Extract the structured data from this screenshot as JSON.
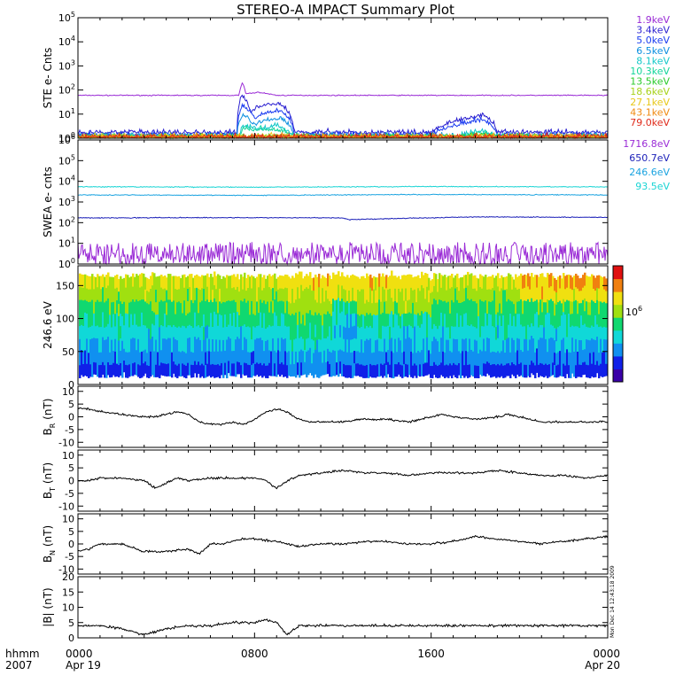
{
  "title": "STEREO-A IMPACT Summary Plot",
  "time_axis": {
    "row1_label": "hhmm",
    "row2_label": "2007",
    "ticks": [
      {
        "hour": 0,
        "label": "0000",
        "date": "Apr 19"
      },
      {
        "hour": 8,
        "label": "0800",
        "date": ""
      },
      {
        "hour": 16,
        "label": "1600",
        "date": ""
      },
      {
        "hour": 24,
        "label": "0000",
        "date": "Apr 20"
      }
    ]
  },
  "side_stamp": "Mon Dec 14 12:43:18 2009",
  "chart_data": [
    {
      "type": "line",
      "ylabel": "STE e- Cnts",
      "yscale": "log",
      "ylim": [
        1,
        100000
      ],
      "yticks": [
        {
          "base": "10",
          "exp": "0"
        },
        {
          "base": "10",
          "exp": "1"
        },
        {
          "base": "10",
          "exp": "2"
        },
        {
          "base": "10",
          "exp": "3"
        },
        {
          "base": "10",
          "exp": "4"
        },
        {
          "base": "10",
          "exp": "5"
        }
      ],
      "xlim_hours": [
        0,
        24
      ],
      "legend_placement": "right",
      "series": [
        {
          "name": "1.9keV",
          "color": "#9a2bd6",
          "x_hours": [
            0,
            4,
            7.3,
            7.45,
            7.6,
            8.2,
            9,
            12,
            16,
            20,
            24
          ],
          "values": [
            60,
            60,
            60,
            200,
            70,
            80,
            60,
            60,
            60,
            60,
            60
          ]
        },
        {
          "name": "3.4keV",
          "color": "#2a1fd0",
          "x_hours": [
            0,
            4,
            7.2,
            7.45,
            7.8,
            8.3,
            9.1,
            9.8,
            12,
            16,
            18.4,
            19,
            20,
            24
          ],
          "values": [
            1.5,
            1.5,
            1.5,
            50,
            10,
            20,
            25,
            1.5,
            1.5,
            1.5,
            8,
            1.5,
            1.5,
            1.5
          ]
        },
        {
          "name": "5.0keV",
          "color": "#1b3cf0",
          "x_hours": [
            0,
            7.2,
            7.45,
            8,
            8.5,
            9.2,
            9.8,
            16,
            18.4,
            19,
            24
          ],
          "values": [
            1.2,
            1.2,
            20,
            6,
            10,
            12,
            1.2,
            1.2,
            5,
            1.2,
            1.2
          ]
        },
        {
          "name": "6.5keV",
          "color": "#0b8fe0",
          "x_hours": [
            0,
            7.2,
            7.45,
            8,
            8.5,
            9.2,
            9.8,
            16,
            24
          ],
          "values": [
            1.1,
            1.1,
            8,
            3,
            5,
            6,
            1.1,
            1.1,
            1.1
          ]
        },
        {
          "name": "8.1keV",
          "color": "#12c8c8",
          "x_hours": [
            0,
            7.3,
            7.5,
            8.3,
            9,
            9.8,
            17.2,
            18.2,
            19.1,
            24
          ],
          "values": [
            1,
            1,
            3,
            2,
            3,
            1,
            1,
            1.8,
            1,
            1
          ]
        },
        {
          "name": "10.3keV",
          "color": "#12d59a",
          "x_hours": [
            0,
            7.3,
            7.5,
            9,
            9.8,
            17.4,
            18.2,
            19,
            24
          ],
          "values": [
            1,
            1,
            2,
            2,
            1,
            1,
            1.5,
            1,
            1
          ]
        },
        {
          "name": "13.5keV",
          "color": "#2acb2a",
          "x_hours": [
            0,
            17.6,
            18.2,
            18.8,
            24
          ],
          "values": [
            1,
            1,
            1.3,
            1,
            1
          ]
        },
        {
          "name": "18.6keV",
          "color": "#a8d21a",
          "x_hours": [
            0,
            24
          ],
          "values": [
            1,
            1
          ]
        },
        {
          "name": "27.1keV",
          "color": "#e8c81a",
          "x_hours": [
            0,
            24
          ],
          "values": [
            1,
            1
          ]
        },
        {
          "name": "43.1keV",
          "color": "#f08a10",
          "x_hours": [
            0,
            24
          ],
          "values": [
            1,
            1
          ]
        },
        {
          "name": "79.0keV",
          "color": "#e02a1a",
          "x_hours": [
            0,
            24
          ],
          "values": [
            1,
            1
          ]
        }
      ]
    },
    {
      "type": "line",
      "ylabel": "SWEA e- cnts",
      "yscale": "log",
      "ylim": [
        1,
        1000000
      ],
      "yticks": [
        {
          "base": "10",
          "exp": "0"
        },
        {
          "base": "10",
          "exp": "1"
        },
        {
          "base": "10",
          "exp": "2"
        },
        {
          "base": "10",
          "exp": "3"
        },
        {
          "base": "10",
          "exp": "4"
        },
        {
          "base": "10",
          "exp": "5"
        },
        {
          "base": "10",
          "exp": "6"
        }
      ],
      "xlim_hours": [
        0,
        24
      ],
      "legend_placement": "right",
      "series": [
        {
          "name": "1716.8eV",
          "color": "#9a2bd6",
          "x_hours": [
            0,
            24
          ],
          "values": [
            2.5,
            2.5
          ]
        },
        {
          "name": "650.7eV",
          "color": "#1a1fb8",
          "x_hours": [
            0,
            6,
            12,
            12.3,
            18,
            24
          ],
          "values": [
            170,
            175,
            170,
            140,
            190,
            180
          ]
        },
        {
          "name": "246.6eV",
          "color": "#1aa3e0",
          "x_hours": [
            0,
            8,
            16,
            24
          ],
          "values": [
            2200,
            2100,
            2300,
            2200
          ]
        },
        {
          "name": "93.5eV",
          "color": "#19d4d4",
          "x_hours": [
            0,
            8,
            16,
            24
          ],
          "values": [
            5500,
            5200,
            5600,
            5400
          ]
        }
      ]
    },
    {
      "type": "heatmap",
      "ylabel": "246.6 eV",
      "ylim": [
        0,
        180
      ],
      "yticks": [
        "0",
        "50",
        "100",
        "150"
      ],
      "xlim_hours": [
        0,
        24
      ],
      "colorbar_label": "10",
      "colorbar_label_exp": "6",
      "colorbar_colors": [
        "#3a00a8",
        "#1020e8",
        "#1090f0",
        "#10d8d8",
        "#10d870",
        "#a0e010",
        "#f0e010",
        "#f08010",
        "#e01010"
      ]
    },
    {
      "type": "line",
      "ylabel": "B",
      "ylabel_sub": "R",
      "ylabel_units": "(nT)",
      "ylim": [
        -12,
        12
      ],
      "yticks": [
        "10",
        "5",
        "0",
        "-5",
        "-10"
      ],
      "xlim_hours": [
        0,
        24
      ],
      "series": [
        {
          "x_hours": [
            0,
            0.5,
            1,
            2,
            3,
            3.5,
            4,
            4.5,
            5,
            5.5,
            6,
            6.5,
            7,
            7.5,
            8,
            8.5,
            9,
            9.5,
            10,
            10.5,
            11,
            12,
            13,
            14,
            15,
            16,
            16.5,
            17,
            18,
            19,
            19.5,
            20,
            21,
            22,
            23,
            24
          ],
          "values": [
            3.5,
            3,
            2,
            1,
            0,
            0,
            1,
            2,
            1,
            -2,
            -3,
            -3,
            -2,
            -3,
            -1,
            2,
            3,
            2,
            -1,
            -2,
            -2,
            -2,
            -1,
            -1,
            -2,
            0,
            1,
            0,
            -1,
            0,
            1,
            0,
            -2,
            -2,
            -2,
            -2
          ]
        }
      ]
    },
    {
      "type": "line",
      "ylabel": "B",
      "ylabel_sub": "T",
      "ylabel_units": "(nT)",
      "ylim": [
        -12,
        12
      ],
      "yticks": [
        "10",
        "5",
        "0",
        "-5",
        "-10"
      ],
      "xlim_hours": [
        0,
        24
      ],
      "series": [
        {
          "x_hours": [
            0,
            0.5,
            1,
            2,
            3,
            3.5,
            4,
            4.5,
            5,
            6,
            7,
            8,
            8.5,
            9,
            9.5,
            10,
            11,
            12,
            13,
            14,
            15,
            16,
            17,
            18,
            19,
            20,
            21,
            22,
            23,
            24
          ],
          "values": [
            0,
            0,
            1,
            1,
            0,
            -3,
            -1,
            1,
            0,
            1,
            1,
            1,
            0,
            -3,
            0,
            2,
            3,
            4,
            3,
            3,
            2,
            3,
            3,
            3,
            4,
            3,
            2,
            2,
            1,
            2
          ]
        }
      ]
    },
    {
      "type": "line",
      "ylabel": "B",
      "ylabel_sub": "N",
      "ylabel_units": "(nT)",
      "ylim": [
        -12,
        12
      ],
      "yticks": [
        "10",
        "5",
        "0",
        "-5",
        "-10"
      ],
      "xlim_hours": [
        0,
        24
      ],
      "series": [
        {
          "x_hours": [
            0,
            0.5,
            1,
            2,
            3,
            4,
            5,
            5.5,
            6,
            6.5,
            7,
            7.5,
            8,
            9,
            10,
            11,
            12,
            13,
            14,
            15,
            16,
            17,
            18,
            19,
            20,
            21,
            22,
            23,
            24
          ],
          "values": [
            -3,
            -2,
            0,
            0,
            -3,
            -3,
            -2,
            -4,
            0,
            0,
            1,
            2,
            2,
            1,
            -1,
            0,
            0,
            1,
            1,
            0,
            0,
            1,
            3,
            2,
            1,
            0,
            1,
            2,
            3
          ]
        }
      ]
    },
    {
      "type": "line",
      "ylabel": "|B|",
      "ylabel_units": "(nT)",
      "ylim": [
        0,
        20
      ],
      "yticks": [
        "20",
        "15",
        "10",
        "5",
        "0"
      ],
      "xlim_hours": [
        0,
        24
      ],
      "series": [
        {
          "x_hours": [
            0,
            1,
            2,
            2.5,
            3,
            4,
            5,
            6,
            7,
            8,
            8.5,
            9,
            9.5,
            10,
            11,
            12,
            13,
            14,
            15,
            16,
            17,
            18,
            19,
            20,
            21,
            22,
            23,
            24
          ],
          "values": [
            4,
            4,
            3,
            2,
            1,
            3,
            4,
            4,
            5,
            5,
            6,
            5,
            1,
            4,
            4,
            4,
            4,
            4,
            4,
            4,
            4,
            4,
            4,
            4,
            4,
            4,
            4,
            4
          ]
        }
      ]
    }
  ]
}
